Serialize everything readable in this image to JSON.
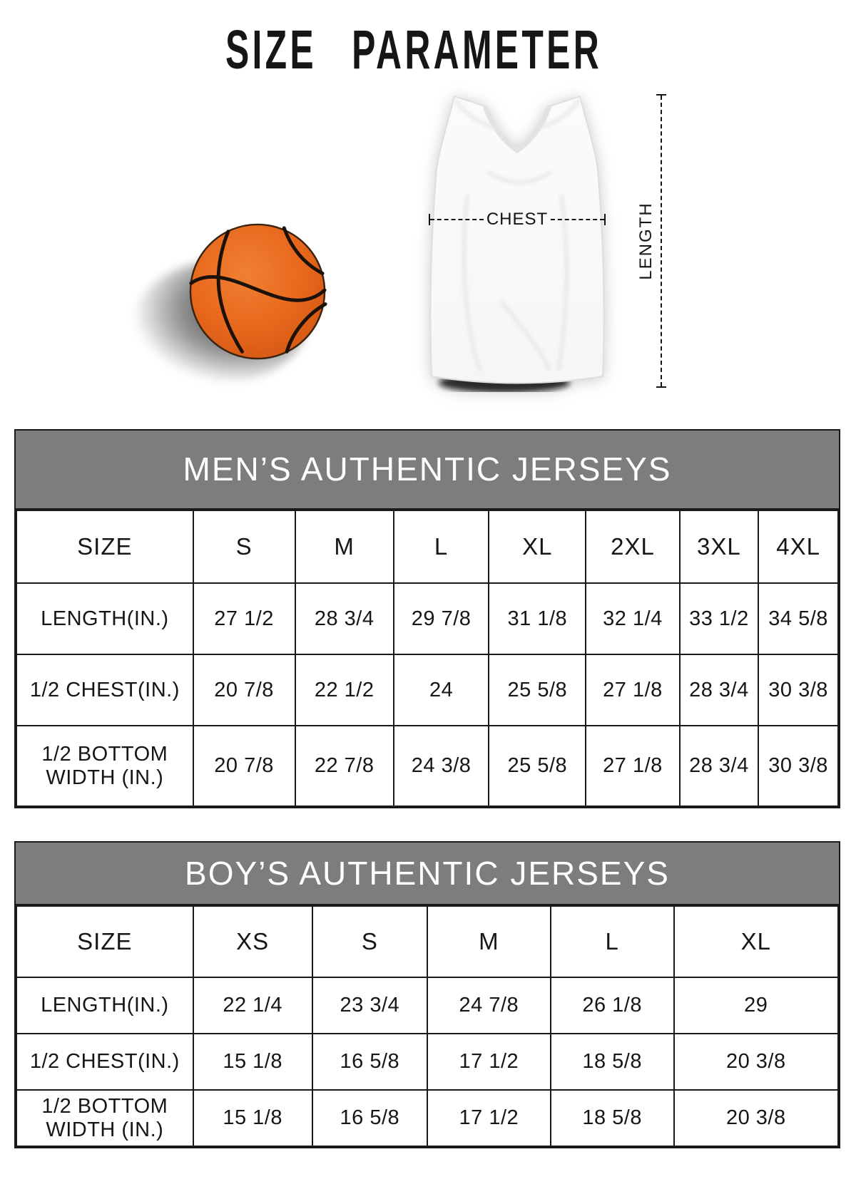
{
  "page": {
    "title": "SIZE PARAMETER"
  },
  "diagram": {
    "chest_label": "CHEST",
    "length_label": "LENGTH",
    "icons": {
      "basketball": "basketball-icon",
      "jersey": "jersey-icon"
    },
    "colors": {
      "basketball_orange": "#e8671c",
      "banner_gray": "#7d7d7d",
      "line_black": "#141414"
    }
  },
  "tables": [
    {
      "title": "MEN’S AUTHENTIC JERSEYS",
      "header": [
        "SIZE",
        "S",
        "M",
        "L",
        "XL",
        "2XL",
        "3XL",
        "4XL"
      ],
      "rows": [
        {
          "label": "LENGTH(IN.)",
          "values": [
            "27 1/2",
            "28 3/4",
            "29 7/8",
            "31 1/8",
            "32 1/4",
            "33 1/2",
            "34 5/8"
          ]
        },
        {
          "label": "1/2 CHEST(IN.)",
          "values": [
            "20 7/8",
            "22 1/2",
            "24",
            "25 5/8",
            "27 1/8",
            "28 3/4",
            "30 3/8"
          ]
        },
        {
          "label": "1/2 BOTTOM WIDTH (IN.)",
          "values": [
            "20 7/8",
            "22 7/8",
            "24 3/8",
            "25 5/8",
            "27 1/8",
            "28 3/4",
            "30 3/8"
          ]
        }
      ]
    },
    {
      "title": "BOY’S AUTHENTIC JERSEYS",
      "header": [
        "SIZE",
        "XS",
        "S",
        "M",
        "L",
        "XL"
      ],
      "rows": [
        {
          "label": "LENGTH(IN.)",
          "values": [
            "22 1/4",
            "23 3/4",
            "24 7/8",
            "26 1/8",
            "29"
          ]
        },
        {
          "label": "1/2 CHEST(IN.)",
          "values": [
            "15 1/8",
            "16 5/8",
            "17 1/2",
            "18 5/8",
            "20 3/8"
          ]
        },
        {
          "label": "1/2 BOTTOM WIDTH (IN.)",
          "values": [
            "15 1/8",
            "16 5/8",
            "17 1/2",
            "18 5/8",
            "20 3/8"
          ]
        }
      ]
    }
  ]
}
